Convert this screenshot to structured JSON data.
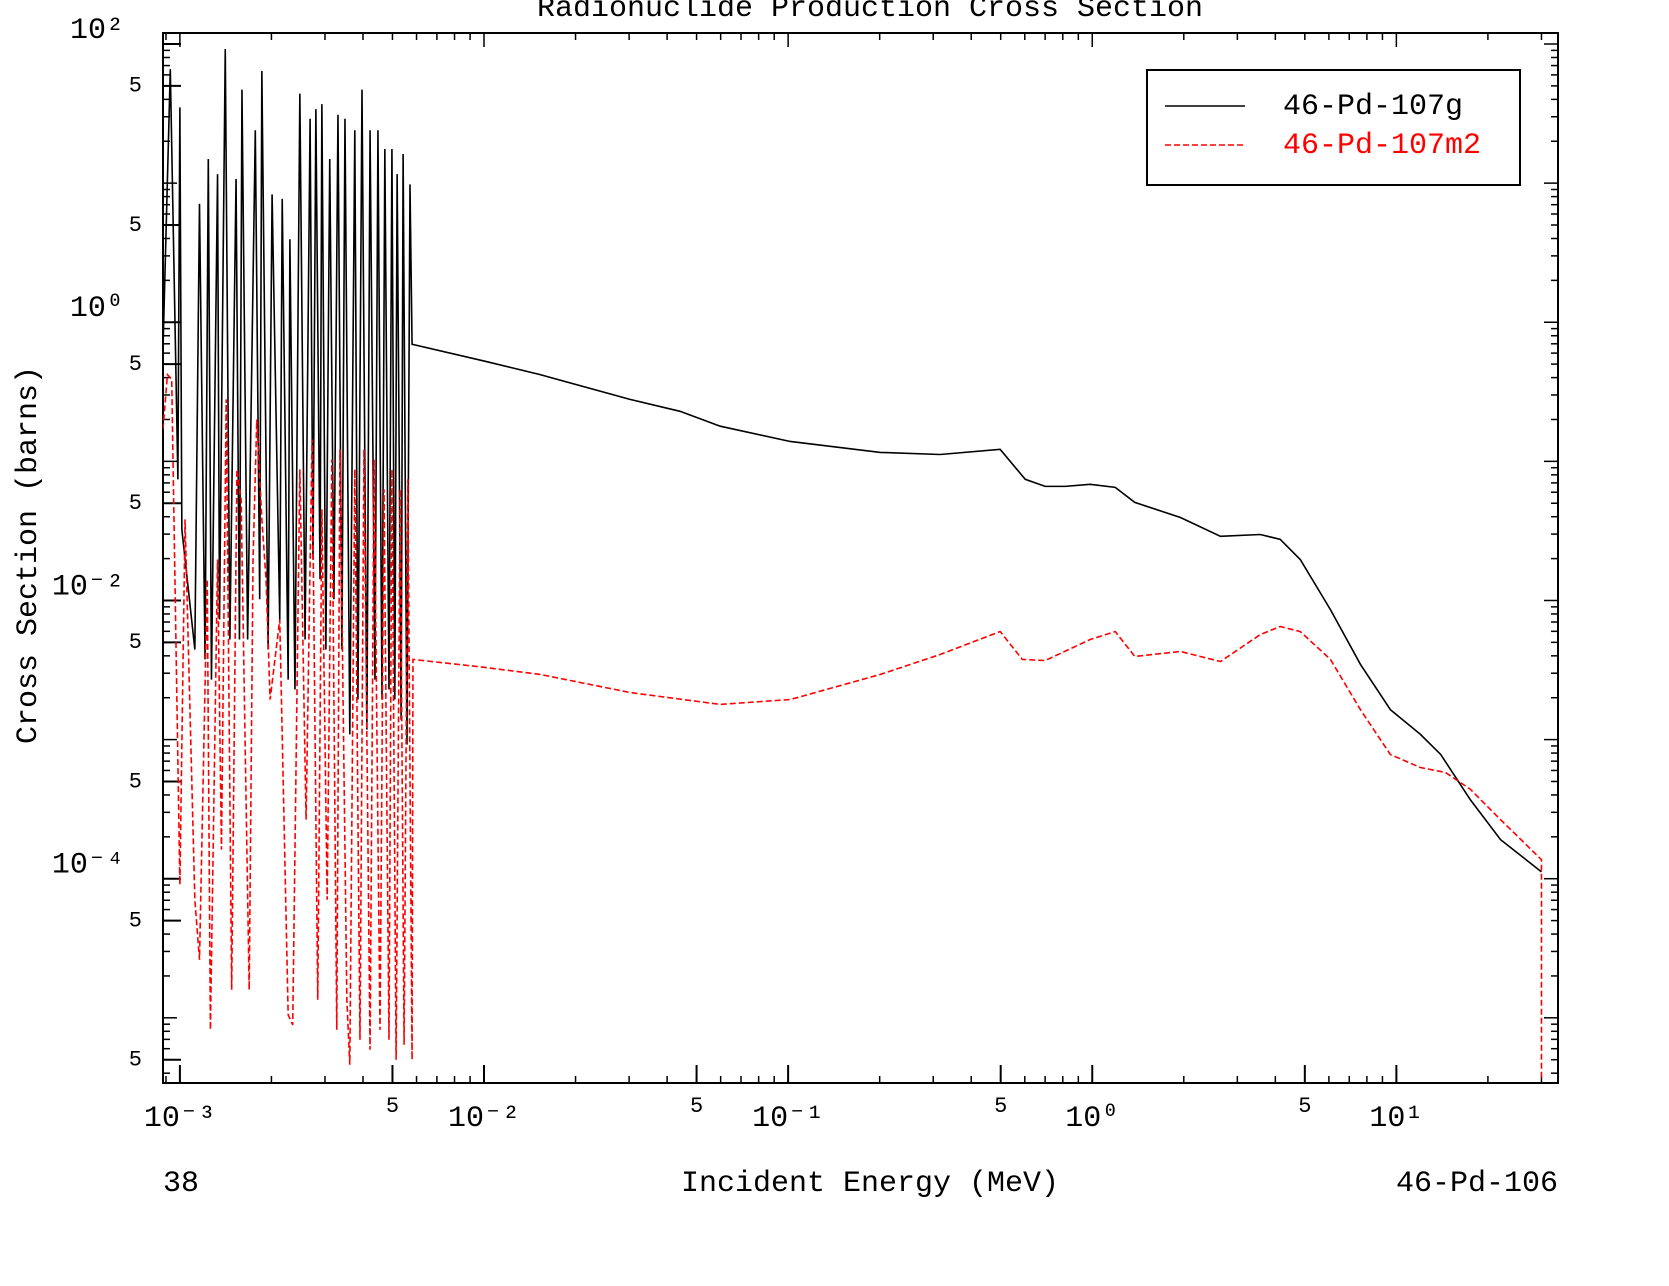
{
  "chart_data": {
    "type": "line",
    "title": "Radionuclide Production Cross Section",
    "x_label": "Incident Energy (MeV)",
    "y_label": "Cross Section (barns)",
    "footer_left": "38",
    "footer_right": "46-Pd-106",
    "log_x": true,
    "log_y": true,
    "xlim": [
      0.00088,
      34
    ],
    "ylim": [
      3.4e-06,
      120
    ],
    "xticks": [
      {
        "value": 0.001,
        "label": "10⁻³"
      },
      {
        "value": 0.005,
        "label": "5"
      },
      {
        "value": 0.01,
        "label": "10⁻²"
      },
      {
        "value": 0.05,
        "label": "5"
      },
      {
        "value": 0.1,
        "label": "10⁻¹"
      },
      {
        "value": 0.5,
        "label": "5"
      },
      {
        "value": 1,
        "label": "10⁰"
      },
      {
        "value": 5,
        "label": "5"
      },
      {
        "value": 10,
        "label": "10¹"
      }
    ],
    "yticks": [
      {
        "value": 100,
        "label": "10²"
      },
      {
        "value": 50,
        "label": "5"
      },
      {
        "value": 5,
        "label": "5"
      },
      {
        "value": 1,
        "label": "10⁰"
      },
      {
        "value": 0.5,
        "label": "5"
      },
      {
        "value": 0.05,
        "label": "5"
      },
      {
        "value": 0.01,
        "label": "10⁻²"
      },
      {
        "value": 0.005,
        "label": "5"
      },
      {
        "value": 0.0005,
        "label": "5"
      },
      {
        "value": 0.0001,
        "label": "10⁻⁴"
      },
      {
        "value": 5e-05,
        "label": "5"
      },
      {
        "value": 5e-06,
        "label": "5"
      }
    ],
    "legend": "upper right",
    "series": [
      {
        "name": "46-Pd-107g",
        "color": "#000000",
        "dash": false,
        "x": [
          0.00088,
          0.00093,
          0.000985,
          0.001,
          0.001015,
          0.00112,
          0.00116,
          0.00121,
          0.00124,
          0.00127,
          0.00133,
          0.00135,
          0.00141,
          0.00146,
          0.00153,
          0.00157,
          0.0016,
          0.00167,
          0.00177,
          0.00183,
          0.00186,
          0.00195,
          0.00201,
          0.00213,
          0.00217,
          0.00227,
          0.0023,
          0.00239,
          0.00248,
          0.00258,
          0.00268,
          0.00274,
          0.0028,
          0.00289,
          0.00293,
          0.00302,
          0.00311,
          0.00321,
          0.00331,
          0.00341,
          0.00349,
          0.00362,
          0.00376,
          0.00385,
          0.00397,
          0.00412,
          0.00422,
          0.00438,
          0.00448,
          0.00462,
          0.00472,
          0.00487,
          0.00498,
          0.00509,
          0.00518,
          0.00534,
          0.00542,
          0.00558,
          0.00571,
          0.0058,
          0.0101,
          0.0153,
          0.0302,
          0.0441,
          0.0598,
          0.1016,
          0.201,
          0.316,
          0.498,
          0.602,
          0.7,
          0.815,
          0.984,
          1.19,
          1.38,
          1.95,
          2.64,
          3.57,
          4.15,
          4.83,
          6.07,
          7.62,
          9.56,
          12.0,
          14.0,
          17.5,
          22.0,
          30
        ],
        "values": [
          0.64,
          66,
          0.0743,
          35,
          0.0324,
          0.00444,
          7.1,
          0.00377,
          14.9,
          0.0027,
          11.6,
          0.0073,
          92,
          0.00524,
          10.7,
          0.00524,
          47,
          0.00524,
          24,
          0.0102,
          64,
          0.00444,
          8.3,
          0.0073,
          7.7,
          0.0027,
          3.95,
          0.00229,
          44,
          0.00524,
          29,
          0.0197,
          34,
          0.0142,
          37,
          0.00444,
          14.9,
          0.0102,
          31,
          0.00444,
          29,
          0.00109,
          24,
          0.00194,
          47,
          0.00118,
          24,
          0.0027,
          24,
          0.00194,
          17.6,
          0.00229,
          17.6,
          0.00194,
          11.6,
          0.00139,
          16.2,
          0.00092,
          9.8,
          0.695,
          0.524,
          0.42,
          0.279,
          0.229,
          0.179,
          0.139,
          0.116,
          0.112,
          0.122,
          0.0743,
          0.0661,
          0.0661,
          0.0684,
          0.065,
          0.0507,
          0.0395,
          0.0289,
          0.0298,
          0.0275,
          0.0197,
          0.0086,
          0.00347,
          0.00164,
          0.00109,
          0.00078,
          0.00037,
          0.000191,
          0.000112
        ]
      },
      {
        "name": "46-Pd-107m2",
        "color": "#ff0000",
        "dash": true,
        "x": [
          0.00088,
          0.00091,
          0.00094,
          0.001,
          0.00104,
          0.00112,
          0.00116,
          0.00123,
          0.00126,
          0.00133,
          0.00137,
          0.00142,
          0.00148,
          0.00154,
          0.00159,
          0.00169,
          0.00174,
          0.00179,
          0.00186,
          0.00192,
          0.00198,
          0.00213,
          0.00227,
          0.00235,
          0.00248,
          0.0026,
          0.00272,
          0.00284,
          0.00293,
          0.00305,
          0.00316,
          0.00328,
          0.00336,
          0.00354,
          0.00362,
          0.00376,
          0.00391,
          0.00403,
          0.00422,
          0.00435,
          0.00455,
          0.00469,
          0.00487,
          0.00498,
          0.00514,
          0.0053,
          0.00546,
          0.00562,
          0.0058,
          0.00584,
          0.0101,
          0.0153,
          0.0302,
          0.0598,
          0.1016,
          0.201,
          0.316,
          0.498,
          0.589,
          0.7,
          0.984,
          1.19,
          1.38,
          1.95,
          2.64,
          3.57,
          4.15,
          4.83,
          6.07,
          7.62,
          9.56,
          12.0,
          14.5,
          17.5,
          22.0,
          30,
          30
        ],
        "values": [
          0.17,
          0.42,
          0.389,
          9.06e-05,
          0.0383,
          7.06e-05,
          2.61e-05,
          0.0142,
          8.2e-06,
          0.0197,
          0.000162,
          0.279,
          1.59e-05,
          0.0876,
          0.0533,
          1.59e-05,
          0.0197,
          0.2,
          0.0383,
          0.0142,
          0.00194,
          0.0073,
          1.05e-05,
          8.9e-06,
          0.0876,
          0.000266,
          0.144,
          1.35e-05,
          0.0452,
          7.06e-05,
          0.103,
          8.2e-06,
          0.122,
          1.35e-05,
          4.6e-06,
          0.0876,
          6.95e-06,
          0.122,
          5.9e-06,
          0.103,
          8.2e-06,
          0.0629,
          6.95e-06,
          0.0876,
          5e-06,
          0.0629,
          6.4e-06,
          0.0743,
          5e-06,
          0.00377,
          0.0033,
          0.00294,
          0.00218,
          0.00179,
          0.00194,
          0.00294,
          0.00409,
          0.00598,
          0.00377,
          0.0037,
          0.00524,
          0.00598,
          0.00396,
          0.0043,
          0.00364,
          0.00569,
          0.0065,
          0.00598,
          0.00377,
          0.00164,
          0.00078,
          0.00063,
          0.00058,
          0.00044,
          0.000266,
          0.000137,
          3.6e-06
        ]
      }
    ]
  }
}
